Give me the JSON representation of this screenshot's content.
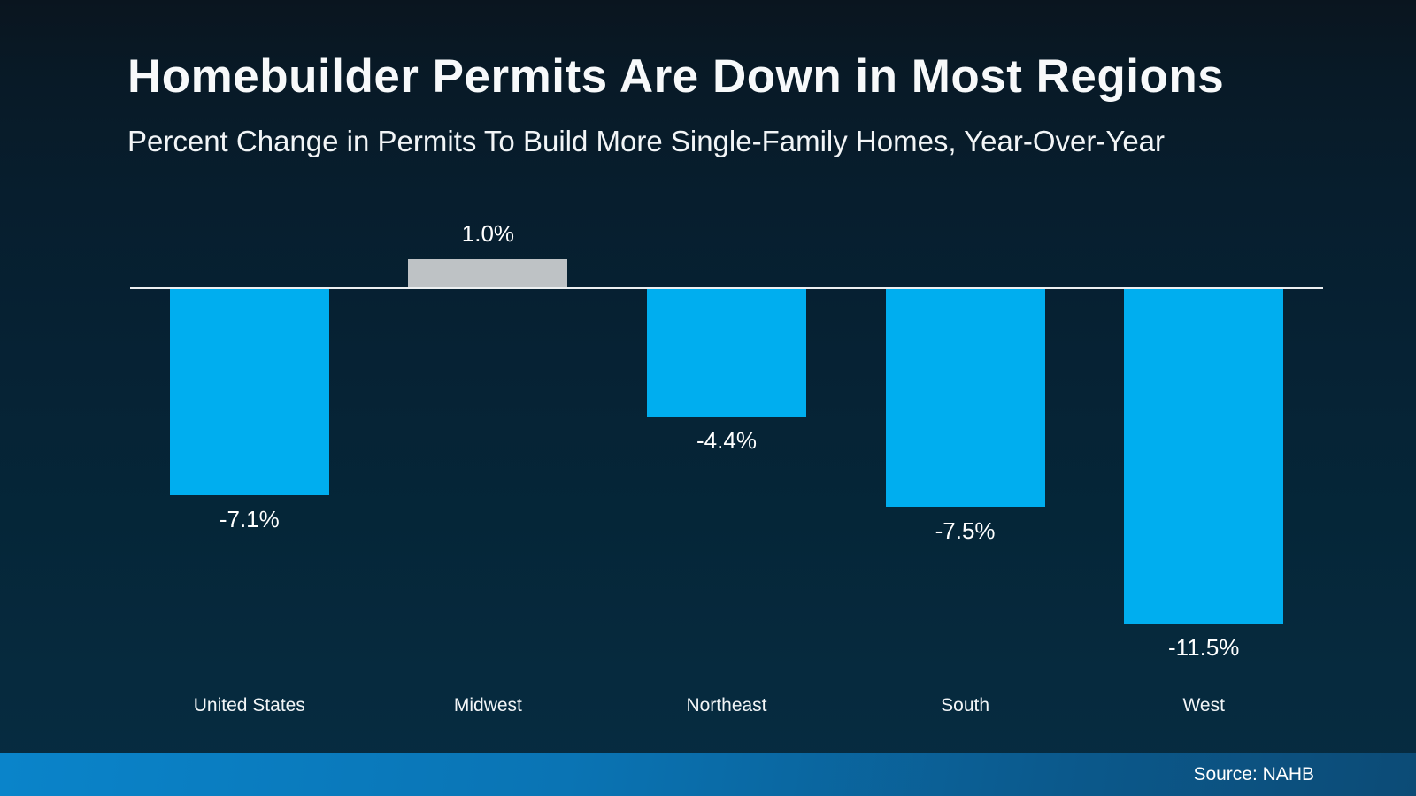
{
  "title": "Homebuilder Permits Are Down in Most Regions",
  "subtitle": "Percent Change in Permits To Build More Single-Family Homes, Year-Over-Year",
  "source": "Source: NAHB",
  "colors": {
    "bar_negative": "#00AEEF",
    "bar_positive_gray": "#BEC2C5",
    "zero_line": "#ECEFF1",
    "background_top": "#0A151F",
    "background_bottom": "#072C41",
    "footer_left": "#0A84CA",
    "footer_right": "#0C4B76",
    "text": "#FFFFFF"
  },
  "chart_data": {
    "type": "bar",
    "title": "Homebuilder Permits Are Down in Most Regions",
    "subtitle": "Percent Change in Permits To Build More Single-Family Homes, Year-Over-Year",
    "categories": [
      "United States",
      "Midwest",
      "Northeast",
      "South",
      "West"
    ],
    "values": [
      -7.1,
      1.0,
      -4.4,
      -7.5,
      -11.5
    ],
    "value_labels": [
      "-7.1%",
      "1.0%",
      "-4.4%",
      "-7.5%",
      "-11.5%"
    ],
    "bar_colors": [
      "#00AEEF",
      "#BEC2C5",
      "#00AEEF",
      "#00AEEF",
      "#00AEEF"
    ],
    "xlabel": "",
    "ylabel": "",
    "ylim": [
      -13,
      2.5
    ],
    "baseline": 0,
    "grid": false,
    "legend": false,
    "data_labels": true,
    "source": "Source: NAHB"
  }
}
